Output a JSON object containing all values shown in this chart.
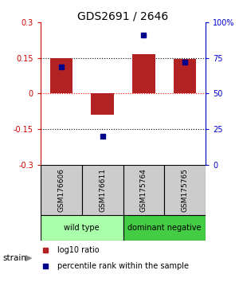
{
  "title": "GDS2691 / 2646",
  "samples": [
    "GSM176606",
    "GSM176611",
    "GSM175764",
    "GSM175765"
  ],
  "log10_ratio": [
    0.15,
    -0.09,
    0.165,
    0.145
  ],
  "percentile_rank": [
    69,
    20,
    91,
    72
  ],
  "ylim_left": [
    -0.3,
    0.3
  ],
  "ylim_right": [
    0,
    100
  ],
  "yticks_left": [
    -0.3,
    -0.15,
    0,
    0.15,
    0.3
  ],
  "yticks_right": [
    0,
    25,
    50,
    75,
    100
  ],
  "bar_color": "#b22222",
  "dot_color": "#00008b",
  "bar_width": 0.55,
  "groups": [
    {
      "label": "wild type",
      "samples": [
        0,
        1
      ],
      "color": "#aaffaa"
    },
    {
      "label": "dominant negative",
      "samples": [
        2,
        3
      ],
      "color": "#44cc44"
    }
  ],
  "strain_label": "strain",
  "legend_items": [
    {
      "color": "#b22222",
      "label": "log10 ratio"
    },
    {
      "color": "#00008b",
      "label": "percentile rank within the sample"
    }
  ],
  "sample_box_color": "#cccccc",
  "left_axis_color": "#cc0000",
  "right_axis_color": "#0000cc",
  "title_fontsize": 10,
  "tick_fontsize": 7,
  "legend_fontsize": 7
}
